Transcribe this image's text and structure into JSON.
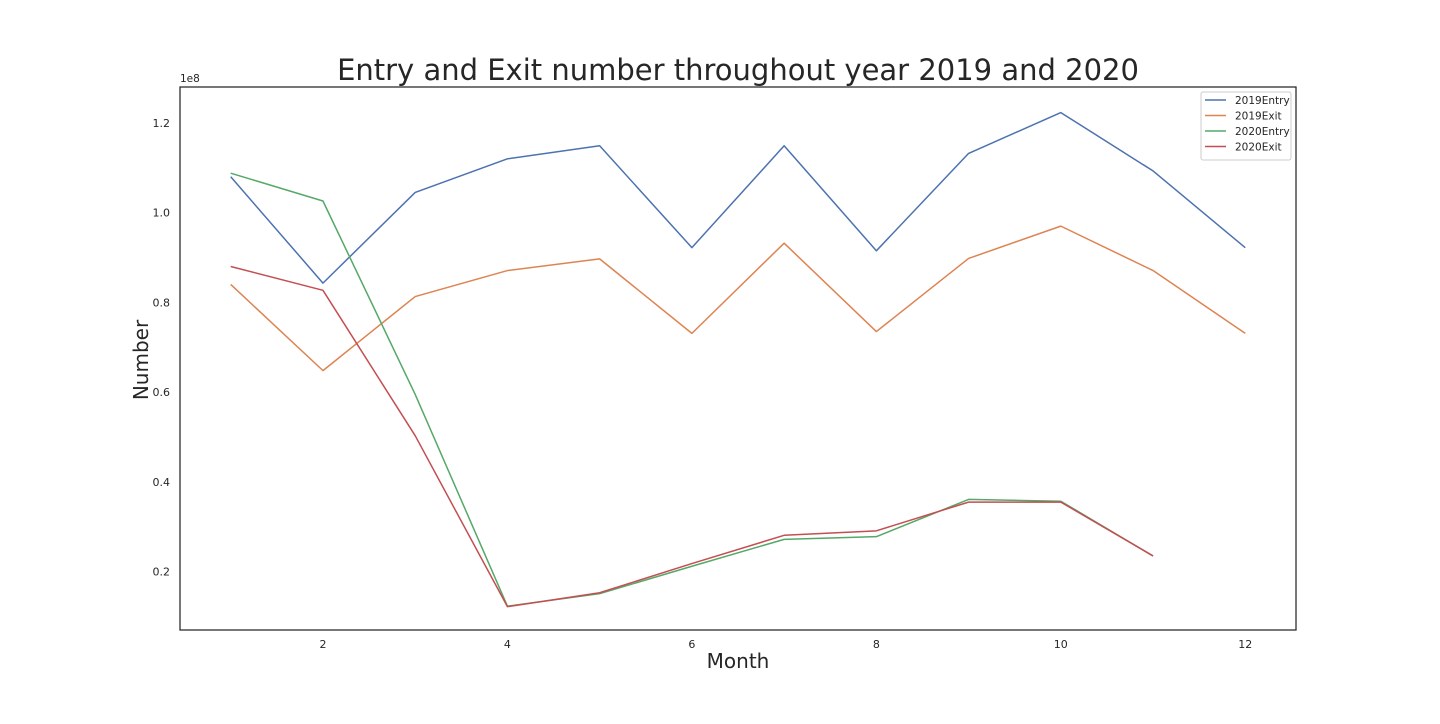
{
  "chart_data": {
    "type": "line",
    "title": "Entry and Exit number throughout year 2019 and 2020",
    "xlabel": "Month",
    "ylabel": "Number",
    "y_offset_label": "1e8",
    "y_scale_note": "values in units of 1e8",
    "xlim": [
      0.45,
      12.55
    ],
    "ylim": [
      0.07,
      1.28
    ],
    "x_ticks": [
      2,
      4,
      6,
      8,
      10,
      12
    ],
    "x_tick_labels": [
      "2",
      "4",
      "6",
      "8",
      "10",
      "12"
    ],
    "y_ticks": [
      0.2,
      0.4,
      0.6,
      0.8,
      1.0,
      1.2
    ],
    "y_tick_labels": [
      "0.2",
      "0.4",
      "0.6",
      "0.8",
      "1.0",
      "1.2"
    ],
    "grid": false,
    "legend_position": "top-right",
    "series": [
      {
        "name": "2019Entry",
        "color": "#4c72b0",
        "x": [
          1,
          2,
          3,
          4,
          5,
          6,
          7,
          8,
          9,
          10,
          11,
          12
        ],
        "values": [
          1.08,
          0.843,
          1.045,
          1.12,
          1.149,
          0.922,
          1.149,
          0.915,
          1.132,
          1.223,
          1.093,
          0.922
        ]
      },
      {
        "name": "2019Exit",
        "color": "#dd8452",
        "x": [
          1,
          2,
          3,
          4,
          5,
          6,
          7,
          8,
          9,
          10,
          11,
          12
        ],
        "values": [
          0.84,
          0.648,
          0.813,
          0.871,
          0.897,
          0.731,
          0.932,
          0.735,
          0.898,
          0.97,
          0.871,
          0.731
        ]
      },
      {
        "name": "2020Entry",
        "color": "#55a868",
        "x": [
          1,
          2,
          3,
          4,
          5,
          6,
          7,
          8,
          9,
          10,
          11
        ],
        "values": [
          1.088,
          1.026,
          0.595,
          0.123,
          0.151,
          0.212,
          0.272,
          0.278,
          0.361,
          0.357,
          0.235
        ]
      },
      {
        "name": "2020Exit",
        "color": "#c44e52",
        "x": [
          1,
          2,
          3,
          4,
          5,
          6,
          7,
          8,
          9,
          10,
          11
        ],
        "values": [
          0.88,
          0.827,
          0.503,
          0.122,
          0.153,
          0.218,
          0.281,
          0.291,
          0.355,
          0.355,
          0.235
        ]
      }
    ]
  }
}
